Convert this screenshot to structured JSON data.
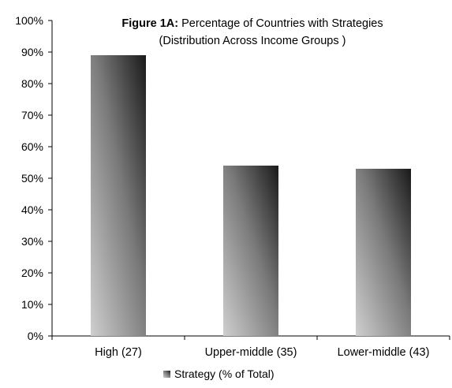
{
  "chart_data": {
    "type": "bar",
    "title_bold": "Figure 1A:",
    "title_rest": " Percentage of Countries with Strategies",
    "subtitle": "(Distribution Across Income Groups )",
    "categories": [
      "High (27)",
      "Upper-middle (35)",
      "Lower-middle (43)"
    ],
    "series": [
      {
        "name": "Strategy (% of Total)",
        "values": [
          89,
          54,
          53
        ]
      }
    ],
    "ylim": [
      0,
      100
    ],
    "yticks": [
      0,
      10,
      20,
      30,
      40,
      50,
      60,
      70,
      80,
      90,
      100
    ],
    "ytick_labels": [
      "0%",
      "10%",
      "20%",
      "30%",
      "40%",
      "50%",
      "60%",
      "70%",
      "80%",
      "90%",
      "100%"
    ],
    "grid": false,
    "legend_position": "bottom-center",
    "colors": {
      "bar_light": "#cfcfcf",
      "bar_mid": "#7a7a7a",
      "bar_dark": "#1a1a1a",
      "axis": "#000000"
    }
  }
}
